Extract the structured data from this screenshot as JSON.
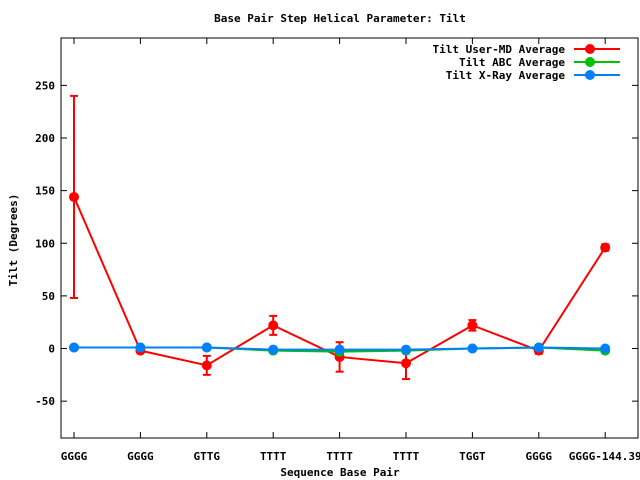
{
  "chart_data": {
    "type": "line",
    "title": "Base Pair Step Helical Parameter: Tilt",
    "xlabel": "Sequence Base Pair",
    "ylabel": "Tilt (Degrees)",
    "categories": [
      "GGGG",
      "GGGG",
      "GTTG",
      "TTTT",
      "TTTT",
      "TTTT",
      "TGGT",
      "GGGG",
      "GGGG-144.39"
    ],
    "ylim": [
      -85,
      295
    ],
    "yticks": [
      -50,
      0,
      50,
      100,
      150,
      200,
      250
    ],
    "grid": false,
    "legend_position": "top-right",
    "series": [
      {
        "name": "Tilt User-MD Average",
        "color": "#ff0000",
        "values": [
          144,
          -2,
          -16,
          22,
          -8,
          -14,
          22,
          -2,
          96
        ],
        "error": [
          96,
          1,
          9,
          9,
          14,
          15,
          5,
          3,
          3
        ]
      },
      {
        "name": "Tilt ABC Average",
        "color": "#00c000",
        "values": [
          1,
          1,
          1,
          -2,
          -3,
          -2,
          0,
          1,
          -2
        ],
        "error": [
          0,
          0,
          0,
          0,
          0,
          0,
          0,
          0,
          0
        ]
      },
      {
        "name": "Tilt X-Ray Average",
        "color": "#0080ff",
        "values": [
          1,
          1,
          1,
          -1,
          -1,
          -1,
          0,
          1,
          0
        ],
        "error": [
          0,
          0,
          0,
          0,
          0,
          0,
          0,
          0,
          0
        ]
      }
    ]
  }
}
